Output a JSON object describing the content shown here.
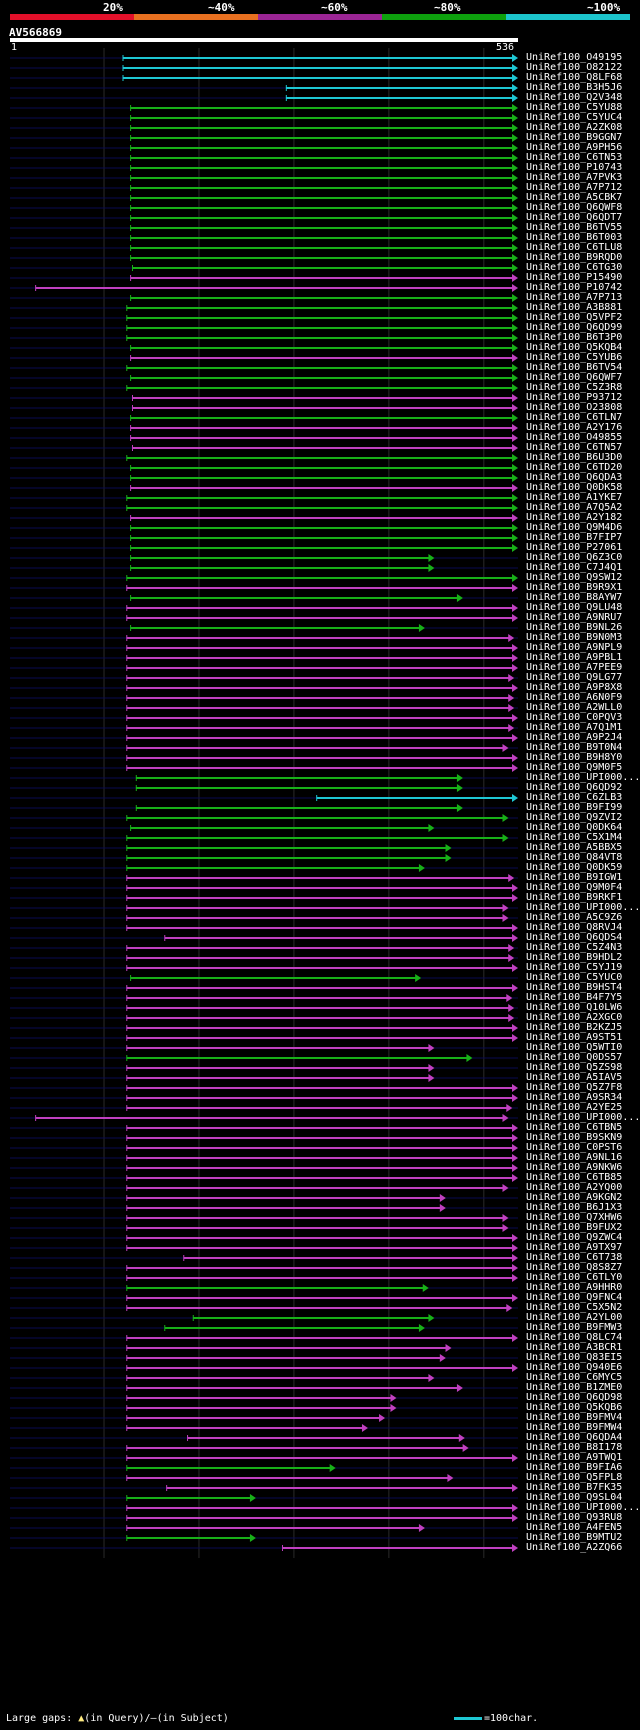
{
  "identity_legend": [
    {
      "label": "20%",
      "color": "#e3102a"
    },
    {
      "label": "~40%",
      "color": "#e87020"
    },
    {
      "label": "~60%",
      "color": "#9b2595"
    },
    {
      "label": "~80%",
      "color": "#0da00d"
    },
    {
      "label": "~100%",
      "color": "#1cc4cc"
    }
  ],
  "query": {
    "id": "AV566869",
    "start": "1",
    "end": "536",
    "length": 536
  },
  "colors": {
    "cyan": "#1ec8d4",
    "green": "#18b018",
    "magenta": "#c040c0",
    "navy": "#0a0a50"
  },
  "hits": [
    {
      "name": "UniRef100_O49195",
      "start": 120,
      "end": 536,
      "c": "cyan"
    },
    {
      "name": "UniRef100_O82122",
      "start": 120,
      "end": 536,
      "c": "cyan"
    },
    {
      "name": "UniRef100_Q8LF68",
      "start": 120,
      "end": 536,
      "c": "cyan"
    },
    {
      "name": "UniRef100_B3H5J6",
      "start": 292,
      "end": 536,
      "c": "cyan"
    },
    {
      "name": "UniRef100_Q2V348",
      "start": 292,
      "end": 536,
      "c": "cyan"
    },
    {
      "name": "UniRef100_C5YU88",
      "start": 128,
      "end": 536,
      "c": "green"
    },
    {
      "name": "UniRef100_C5YUC4",
      "start": 128,
      "end": 536,
      "c": "green"
    },
    {
      "name": "UniRef100_A2ZK08",
      "start": 128,
      "end": 536,
      "c": "green"
    },
    {
      "name": "UniRef100_B9GGN7",
      "start": 128,
      "end": 536,
      "c": "green"
    },
    {
      "name": "UniRef100_A9PH56",
      "start": 128,
      "end": 536,
      "c": "green"
    },
    {
      "name": "UniRef100_C6TN53",
      "start": 128,
      "end": 536,
      "c": "green"
    },
    {
      "name": "UniRef100_P10743",
      "start": 128,
      "end": 536,
      "c": "green"
    },
    {
      "name": "UniRef100_A7PVK3",
      "start": 128,
      "end": 536,
      "c": "green"
    },
    {
      "name": "UniRef100_A7P712",
      "start": 128,
      "end": 536,
      "c": "green"
    },
    {
      "name": "UniRef100_A5CBK7",
      "start": 128,
      "end": 536,
      "c": "green"
    },
    {
      "name": "UniRef100_Q6QWF8",
      "start": 128,
      "end": 536,
      "c": "green"
    },
    {
      "name": "UniRef100_Q6QDT7",
      "start": 128,
      "end": 536,
      "c": "green"
    },
    {
      "name": "UniRef100_B6TV55",
      "start": 128,
      "end": 536,
      "c": "green"
    },
    {
      "name": "UniRef100_B6T003",
      "start": 128,
      "end": 536,
      "c": "green"
    },
    {
      "name": "UniRef100_C6TLU8",
      "start": 128,
      "end": 536,
      "c": "green"
    },
    {
      "name": "UniRef100_B9RQD0",
      "start": 128,
      "end": 536,
      "c": "green"
    },
    {
      "name": "UniRef100_C6TG30",
      "start": 130,
      "end": 536,
      "c": "green"
    },
    {
      "name": "UniRef100_P15490",
      "start": 128,
      "end": 536,
      "c": "magenta"
    },
    {
      "name": "UniRef100_P10742",
      "start": 28,
      "end": 536,
      "c": "magenta"
    },
    {
      "name": "UniRef100_A7P713",
      "start": 128,
      "end": 536,
      "c": "green"
    },
    {
      "name": "UniRef100_A3B881",
      "start": 124,
      "end": 536,
      "c": "green"
    },
    {
      "name": "UniRef100_Q5VPF2",
      "start": 124,
      "end": 536,
      "c": "green"
    },
    {
      "name": "UniRef100_Q6QD99",
      "start": 124,
      "end": 536,
      "c": "green"
    },
    {
      "name": "UniRef100_B6T3P0",
      "start": 124,
      "end": 536,
      "c": "green"
    },
    {
      "name": "UniRef100_Q5KQB4",
      "start": 128,
      "end": 536,
      "c": "green"
    },
    {
      "name": "UniRef100_C5YUB6",
      "start": 128,
      "end": 536,
      "c": "magenta"
    },
    {
      "name": "UniRef100_B6TV54",
      "start": 124,
      "end": 536,
      "c": "green"
    },
    {
      "name": "UniRef100_Q6QWF7",
      "start": 128,
      "end": 536,
      "c": "green"
    },
    {
      "name": "UniRef100_C5Z3R8",
      "start": 124,
      "end": 536,
      "c": "green"
    },
    {
      "name": "UniRef100_P93712",
      "start": 130,
      "end": 536,
      "c": "magenta"
    },
    {
      "name": "UniRef100_O23808",
      "start": 130,
      "end": 536,
      "c": "magenta"
    },
    {
      "name": "UniRef100_C6TLN7",
      "start": 128,
      "end": 536,
      "c": "green"
    },
    {
      "name": "UniRef100_A2Y176",
      "start": 128,
      "end": 536,
      "c": "magenta"
    },
    {
      "name": "UniRef100_O49855",
      "start": 128,
      "end": 536,
      "c": "magenta"
    },
    {
      "name": "UniRef100_C6TN57",
      "start": 130,
      "end": 536,
      "c": "magenta"
    },
    {
      "name": "UniRef100_B6U3D0",
      "start": 124,
      "end": 536,
      "c": "green"
    },
    {
      "name": "UniRef100_C6TD20",
      "start": 128,
      "end": 536,
      "c": "green"
    },
    {
      "name": "UniRef100_Q6QDA3",
      "start": 128,
      "end": 536,
      "c": "green"
    },
    {
      "name": "UniRef100_Q0DK58",
      "start": 128,
      "end": 536,
      "c": "magenta"
    },
    {
      "name": "UniRef100_A1YKE7",
      "start": 124,
      "end": 536,
      "c": "green"
    },
    {
      "name": "UniRef100_A7Q5A2",
      "start": 124,
      "end": 536,
      "c": "green"
    },
    {
      "name": "UniRef100_A2Y182",
      "start": 128,
      "end": 536,
      "c": "magenta"
    },
    {
      "name": "UniRef100_Q9M4D6",
      "start": 128,
      "end": 536,
      "c": "green"
    },
    {
      "name": "UniRef100_B7FIP7",
      "start": 128,
      "end": 536,
      "c": "green"
    },
    {
      "name": "UniRef100_P27061",
      "start": 128,
      "end": 536,
      "c": "green"
    },
    {
      "name": "UniRef100_Q6Z3C0",
      "start": 128,
      "end": 448,
      "c": "green"
    },
    {
      "name": "UniRef100_C7J4Q1",
      "start": 128,
      "end": 448,
      "c": "green"
    },
    {
      "name": "UniRef100_Q9SW12",
      "start": 124,
      "end": 536,
      "c": "green"
    },
    {
      "name": "UniRef100_B9R9X1",
      "start": 124,
      "end": 536,
      "c": "magenta"
    },
    {
      "name": "UniRef100_B8AYW7",
      "start": 128,
      "end": 478,
      "c": "green"
    },
    {
      "name": "UniRef100_Q9LU48",
      "start": 124,
      "end": 536,
      "c": "magenta"
    },
    {
      "name": "UniRef100_A9NRU7",
      "start": 124,
      "end": 536,
      "c": "magenta"
    },
    {
      "name": "UniRef100_B9NL26",
      "start": 128,
      "end": 438,
      "c": "green"
    },
    {
      "name": "UniRef100_B9N0M3",
      "start": 124,
      "end": 532,
      "c": "magenta"
    },
    {
      "name": "UniRef100_A9NPL9",
      "start": 124,
      "end": 536,
      "c": "magenta"
    },
    {
      "name": "UniRef100_A9PBL1",
      "start": 124,
      "end": 536,
      "c": "magenta"
    },
    {
      "name": "UniRef100_A7PEE9",
      "start": 124,
      "end": 536,
      "c": "magenta"
    },
    {
      "name": "UniRef100_Q9LG77",
      "start": 124,
      "end": 532,
      "c": "magenta"
    },
    {
      "name": "UniRef100_A9P8X8",
      "start": 124,
      "end": 536,
      "c": "magenta"
    },
    {
      "name": "UniRef100_A6N0F9",
      "start": 124,
      "end": 532,
      "c": "magenta"
    },
    {
      "name": "UniRef100_A2WLL0",
      "start": 124,
      "end": 532,
      "c": "magenta"
    },
    {
      "name": "UniRef100_C0PQV3",
      "start": 124,
      "end": 536,
      "c": "magenta"
    },
    {
      "name": "UniRef100_A7Q1M1",
      "start": 124,
      "end": 532,
      "c": "magenta"
    },
    {
      "name": "UniRef100_A9P2J4",
      "start": 124,
      "end": 536,
      "c": "magenta"
    },
    {
      "name": "UniRef100_B9T0N4",
      "start": 124,
      "end": 526,
      "c": "magenta"
    },
    {
      "name": "UniRef100_B9H8Y0",
      "start": 124,
      "end": 536,
      "c": "magenta"
    },
    {
      "name": "UniRef100_Q9M0F5",
      "start": 124,
      "end": 536,
      "c": "magenta"
    },
    {
      "name": "UniRef100_UPI000...",
      "start": 134,
      "end": 478,
      "c": "green"
    },
    {
      "name": "UniRef100_Q6QD92",
      "start": 134,
      "end": 478,
      "c": "green"
    },
    {
      "name": "UniRef100_C6ZLB3",
      "start": 324,
      "end": 536,
      "c": "cyan"
    },
    {
      "name": "UniRef100_B9FI99",
      "start": 134,
      "end": 478,
      "c": "green"
    },
    {
      "name": "UniRef100_Q9ZVI2",
      "start": 124,
      "end": 526,
      "c": "green"
    },
    {
      "name": "UniRef100_Q0DK64",
      "start": 128,
      "end": 448,
      "c": "green"
    },
    {
      "name": "UniRef100_C5X1M4",
      "start": 124,
      "end": 526,
      "c": "green"
    },
    {
      "name": "UniRef100_A5BBX5",
      "start": 124,
      "end": 466,
      "c": "green"
    },
    {
      "name": "UniRef100_Q84VT8",
      "start": 124,
      "end": 466,
      "c": "green"
    },
    {
      "name": "UniRef100_Q0DK59",
      "start": 124,
      "end": 438,
      "c": "green"
    },
    {
      "name": "UniRef100_B9IGW1",
      "start": 124,
      "end": 532,
      "c": "magenta"
    },
    {
      "name": "UniRef100_Q9M0F4",
      "start": 124,
      "end": 536,
      "c": "magenta"
    },
    {
      "name": "UniRef100_B9RKF1",
      "start": 124,
      "end": 536,
      "c": "magenta"
    },
    {
      "name": "UniRef100_UPI000...",
      "start": 124,
      "end": 526,
      "c": "magenta"
    },
    {
      "name": "UniRef100_A5C9Z6",
      "start": 124,
      "end": 526,
      "c": "magenta"
    },
    {
      "name": "UniRef100_Q8RVJ4",
      "start": 124,
      "end": 536,
      "c": "magenta"
    },
    {
      "name": "UniRef100_Q6QDS4",
      "start": 164,
      "end": 536,
      "c": "magenta"
    },
    {
      "name": "UniRef100_C5Z4N3",
      "start": 124,
      "end": 532,
      "c": "magenta"
    },
    {
      "name": "UniRef100_B9HDL2",
      "start": 124,
      "end": 532,
      "c": "magenta"
    },
    {
      "name": "UniRef100_C5YJ19",
      "start": 124,
      "end": 536,
      "c": "magenta"
    },
    {
      "name": "UniRef100_C5YUC0",
      "start": 128,
      "end": 434,
      "c": "green"
    },
    {
      "name": "UniRef100_B9HST4",
      "start": 124,
      "end": 536,
      "c": "magenta"
    },
    {
      "name": "UniRef100_B4F7Y5",
      "start": 124,
      "end": 530,
      "c": "magenta"
    },
    {
      "name": "UniRef100_Q10LW6",
      "start": 124,
      "end": 532,
      "c": "magenta"
    },
    {
      "name": "UniRef100_A2XGC0",
      "start": 124,
      "end": 532,
      "c": "magenta"
    },
    {
      "name": "UniRef100_B2KZJ5",
      "start": 124,
      "end": 536,
      "c": "magenta"
    },
    {
      "name": "UniRef100_A9ST51",
      "start": 124,
      "end": 536,
      "c": "magenta"
    },
    {
      "name": "UniRef100_Q5WTI0",
      "start": 124,
      "end": 448,
      "c": "magenta"
    },
    {
      "name": "UniRef100_Q0DS57",
      "start": 124,
      "end": 488,
      "c": "green"
    },
    {
      "name": "UniRef100_Q5ZS98",
      "start": 124,
      "end": 448,
      "c": "magenta"
    },
    {
      "name": "UniRef100_A5IAV5",
      "start": 124,
      "end": 448,
      "c": "magenta"
    },
    {
      "name": "UniRef100_Q5Z7F8",
      "start": 124,
      "end": 536,
      "c": "magenta"
    },
    {
      "name": "UniRef100_A9SR34",
      "start": 124,
      "end": 536,
      "c": "magenta"
    },
    {
      "name": "UniRef100_A2YE25",
      "start": 124,
      "end": 530,
      "c": "magenta"
    },
    {
      "name": "UniRef100_UPI000...",
      "start": 28,
      "end": 526,
      "c": "magenta"
    },
    {
      "name": "UniRef100_C6TBN5",
      "start": 124,
      "end": 536,
      "c": "magenta"
    },
    {
      "name": "UniRef100_B9SKN9",
      "start": 124,
      "end": 536,
      "c": "magenta"
    },
    {
      "name": "UniRef100_C0PST6",
      "start": 124,
      "end": 536,
      "c": "magenta"
    },
    {
      "name": "UniRef100_A9NL16",
      "start": 124,
      "end": 536,
      "c": "magenta"
    },
    {
      "name": "UniRef100_A9NKW6",
      "start": 124,
      "end": 536,
      "c": "magenta"
    },
    {
      "name": "UniRef100_C6TB85",
      "start": 124,
      "end": 536,
      "c": "magenta"
    },
    {
      "name": "UniRef100_A2YQ00",
      "start": 124,
      "end": 526,
      "c": "magenta"
    },
    {
      "name": "UniRef100_A9KGN2",
      "start": 124,
      "end": 460,
      "c": "magenta"
    },
    {
      "name": "UniRef100_B6J1X3",
      "start": 124,
      "end": 460,
      "c": "magenta"
    },
    {
      "name": "UniRef100_Q7XHW6",
      "start": 124,
      "end": 526,
      "c": "magenta"
    },
    {
      "name": "UniRef100_B9FUX2",
      "start": 124,
      "end": 526,
      "c": "magenta"
    },
    {
      "name": "UniRef100_Q9ZWC4",
      "start": 124,
      "end": 536,
      "c": "magenta"
    },
    {
      "name": "UniRef100_A9TX97",
      "start": 124,
      "end": 536,
      "c": "magenta"
    },
    {
      "name": "UniRef100_C6T738",
      "start": 184,
      "end": 536,
      "c": "magenta"
    },
    {
      "name": "UniRef100_Q8S8Z7",
      "start": 124,
      "end": 536,
      "c": "magenta"
    },
    {
      "name": "UniRef100_C6TLY0",
      "start": 124,
      "end": 536,
      "c": "magenta"
    },
    {
      "name": "UniRef100_A9HHR0",
      "start": 124,
      "end": 442,
      "c": "green"
    },
    {
      "name": "UniRef100_Q9FNC4",
      "start": 124,
      "end": 536,
      "c": "magenta"
    },
    {
      "name": "UniRef100_C5X5N2",
      "start": 124,
      "end": 530,
      "c": "magenta"
    },
    {
      "name": "UniRef100_A2YL00",
      "start": 194,
      "end": 448,
      "c": "green"
    },
    {
      "name": "UniRef100_B9FMW3",
      "start": 164,
      "end": 438,
      "c": "green"
    },
    {
      "name": "UniRef100_Q8LC74",
      "start": 124,
      "end": 536,
      "c": "magenta"
    },
    {
      "name": "UniRef100_A3BCR1",
      "start": 124,
      "end": 466,
      "c": "magenta"
    },
    {
      "name": "UniRef100_Q83EI5",
      "start": 124,
      "end": 460,
      "c": "magenta"
    },
    {
      "name": "UniRef100_Q940E6",
      "start": 124,
      "end": 536,
      "c": "magenta"
    },
    {
      "name": "UniRef100_C6MYC5",
      "start": 124,
      "end": 448,
      "c": "magenta"
    },
    {
      "name": "UniRef100_B1ZME0",
      "start": 124,
      "end": 478,
      "c": "magenta"
    },
    {
      "name": "UniRef100_Q6QD98",
      "start": 124,
      "end": 408,
      "c": "magenta"
    },
    {
      "name": "UniRef100_Q5KQB6",
      "start": 124,
      "end": 408,
      "c": "magenta"
    },
    {
      "name": "UniRef100_B9FMV4",
      "start": 124,
      "end": 396,
      "c": "magenta"
    },
    {
      "name": "UniRef100_B9FMW4",
      "start": 124,
      "end": 378,
      "c": "magenta"
    },
    {
      "name": "UniRef100_Q6QDA4",
      "start": 188,
      "end": 480,
      "c": "magenta"
    },
    {
      "name": "UniRef100_B8I178",
      "start": 124,
      "end": 484,
      "c": "magenta"
    },
    {
      "name": "UniRef100_A9TWQ1",
      "start": 124,
      "end": 536,
      "c": "magenta"
    },
    {
      "name": "UniRef100_B9FIA6",
      "start": 124,
      "end": 344,
      "c": "green"
    },
    {
      "name": "UniRef100_Q5FPL8",
      "start": 124,
      "end": 468,
      "c": "magenta"
    },
    {
      "name": "UniRef100_B7FK35",
      "start": 166,
      "end": 536,
      "c": "magenta"
    },
    {
      "name": "UniRef100_Q9SL04",
      "start": 124,
      "end": 260,
      "c": "green"
    },
    {
      "name": "UniRef100_UPI000...",
      "start": 124,
      "end": 536,
      "c": "magenta"
    },
    {
      "name": "UniRef100_Q93RU8",
      "start": 124,
      "end": 536,
      "c": "magenta"
    },
    {
      "name": "UniRef100_A4FEN5",
      "start": 124,
      "end": 438,
      "c": "magenta"
    },
    {
      "name": "UniRef100_B9MTU2",
      "start": 124,
      "end": 260,
      "c": "green"
    },
    {
      "name": "UniRef100_A2ZQ66",
      "start": 288,
      "end": 536,
      "c": "magenta"
    }
  ],
  "footer": {
    "gaps_label": "Large gaps:",
    "query_gap_text": "(in Query)/",
    "subject_gap_text": "(in Subject)",
    "scale_text": "=100char."
  }
}
